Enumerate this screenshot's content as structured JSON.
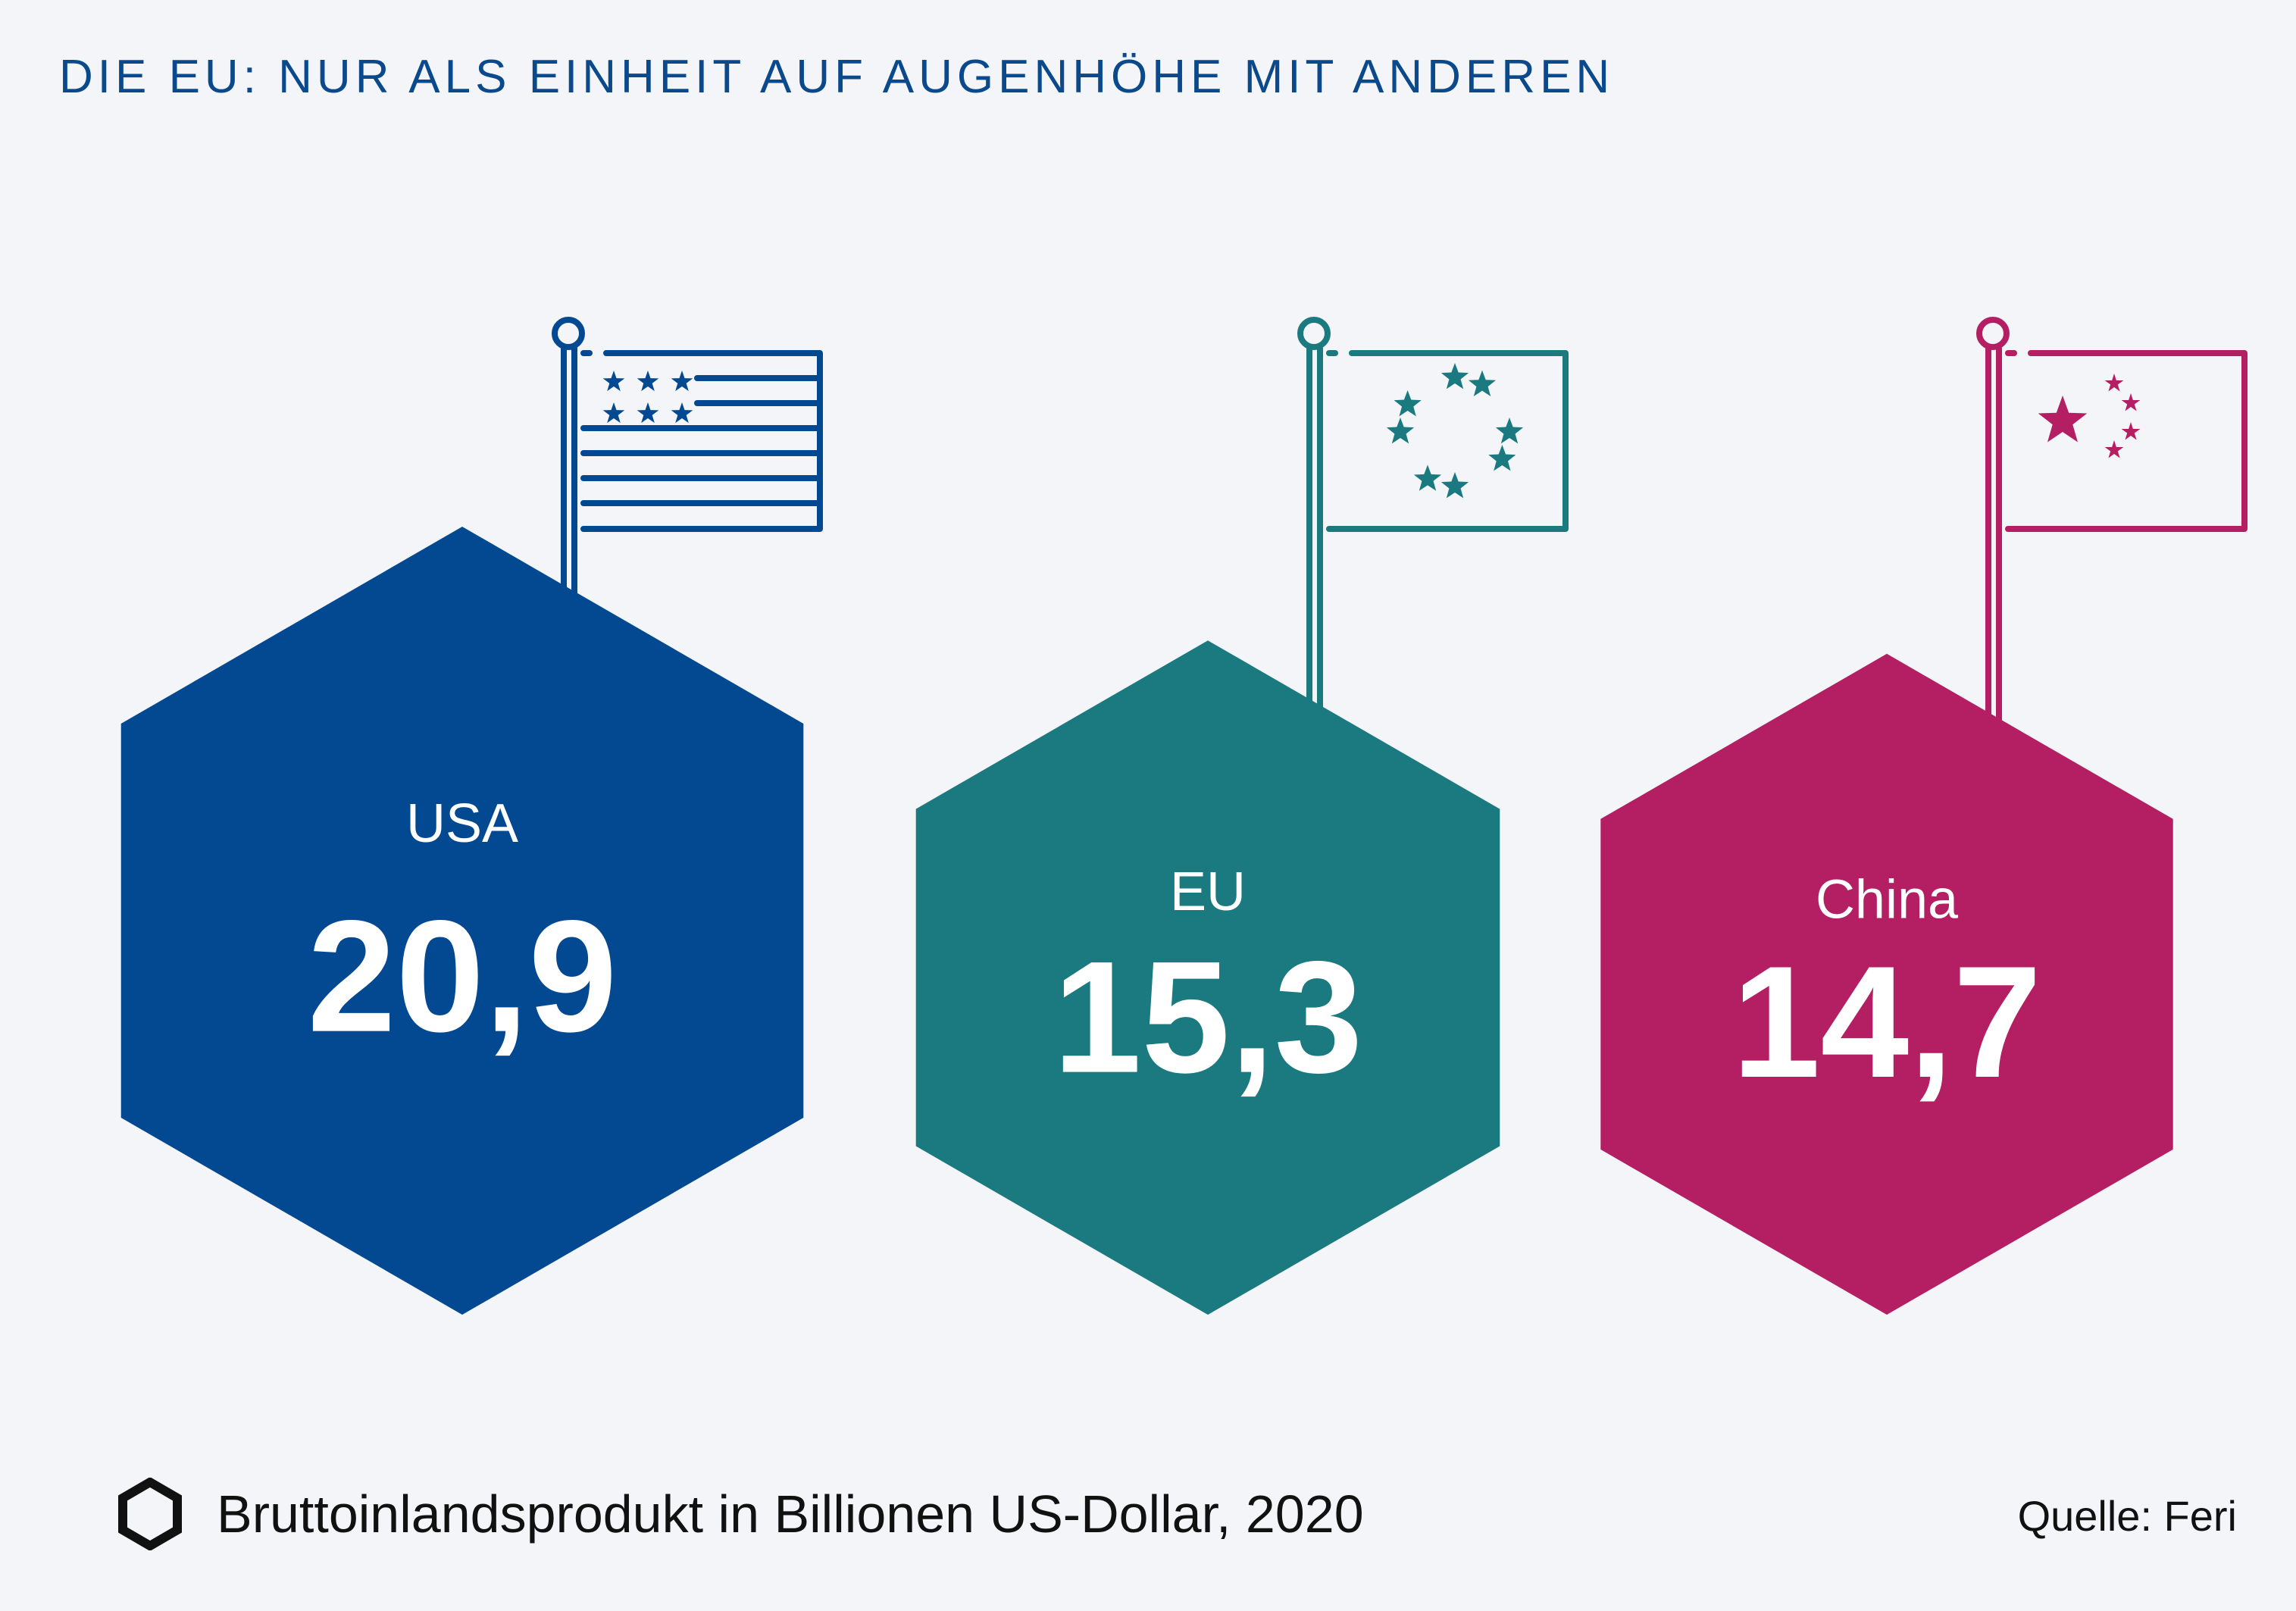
{
  "title": "DIE EU: NUR ALS EINHEIT AUF AUGENHÖHE MIT ANDEREN",
  "legend": "Bruttoinlandsprodukt in Billionen US-Dollar, 2020",
  "source": "Quelle: Feri",
  "chart_data": {
    "type": "hexagon-bubble",
    "unit": "Billionen US-Dollar",
    "year": 2020,
    "categories": [
      "USA",
      "EU",
      "China"
    ],
    "values": [
      20.9,
      15.3,
      14.7
    ],
    "display_values": [
      "20,9",
      "15,3",
      "14,7"
    ],
    "colors": [
      "#034991",
      "#1b7a80",
      "#b31f62"
    ],
    "flags": [
      "us-flag-icon",
      "eu-flag-icon",
      "china-flag-icon"
    ]
  }
}
